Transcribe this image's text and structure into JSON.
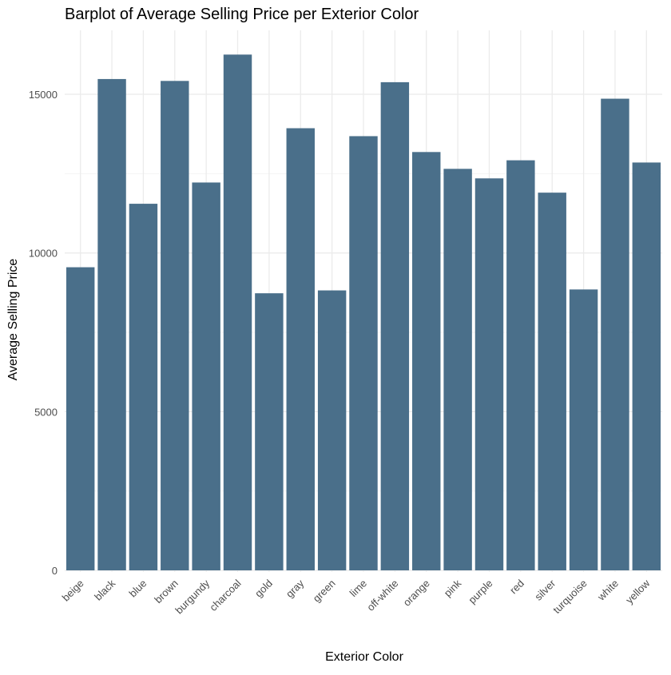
{
  "chart_data": {
    "type": "bar",
    "title": "Barplot of Average Selling Price per Exterior Color",
    "xlabel": "Exterior Color",
    "ylabel": "Average Selling Price",
    "categories": [
      "beige",
      "black",
      "blue",
      "brown",
      "burgundy",
      "charcoal",
      "gold",
      "gray",
      "green",
      "lime",
      "off-white",
      "orange",
      "pink",
      "purple",
      "red",
      "silver",
      "turquoise",
      "white",
      "yellow"
    ],
    "values": [
      9550,
      15480,
      11550,
      15420,
      12220,
      16250,
      8730,
      13930,
      8820,
      13680,
      15380,
      13180,
      12650,
      12350,
      12920,
      11900,
      8850,
      14860,
      12850
    ],
    "ylim": [
      0,
      16600
    ],
    "yticks": [
      0,
      5000,
      10000,
      15000
    ],
    "ytick_labels": [
      "0",
      "5000",
      "10000",
      "15000"
    ],
    "grid": true,
    "bar_color": "#4a6f8a"
  }
}
